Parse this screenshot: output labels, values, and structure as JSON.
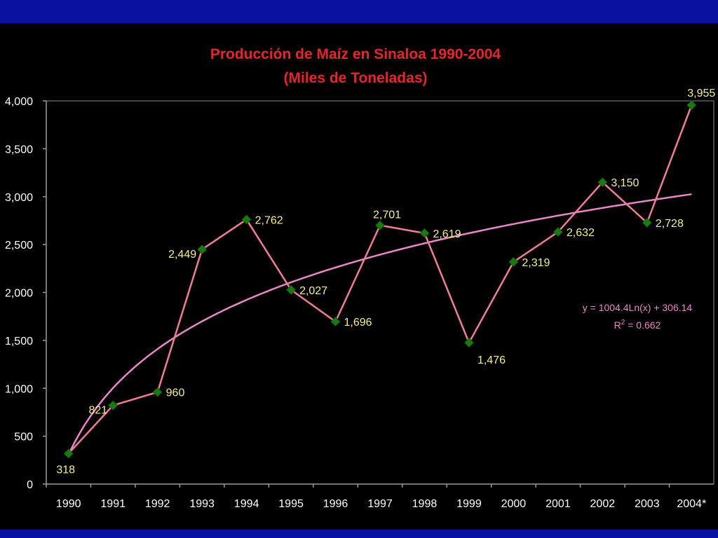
{
  "chart_data": {
    "type": "line",
    "title": "Producción de Maíz en Sinaloa 1990-2004",
    "subtitle": "(Miles de Toneladas)",
    "xlabel": "",
    "ylabel": "",
    "categories": [
      "1990",
      "1991",
      "1992",
      "1993",
      "1994",
      "1995",
      "1996",
      "1997",
      "1998",
      "1999",
      "2000",
      "2001",
      "2002",
      "2003",
      "2004*"
    ],
    "series": [
      {
        "name": "",
        "values": [
          318,
          821,
          960,
          2449,
          2762,
          2027,
          1696,
          2701,
          2619,
          1476,
          2319,
          2632,
          3150,
          2728,
          3955
        ],
        "labels": [
          "318",
          "821",
          "960",
          "2,449",
          "2,762",
          "2,027",
          "1,696",
          "2,701",
          "2,619",
          "1,476",
          "2,319",
          "2,632",
          "3,150",
          "2,728",
          "3,955"
        ],
        "line_color": "#f07c98",
        "marker_color": "#1a7a12",
        "marker": "diamond"
      }
    ],
    "trendline": {
      "type": "logarithmic",
      "a": 1004.4,
      "b": 306.14,
      "equation": "y = 1004.4Ln(x) + 306.14",
      "r2_prefix": "R",
      "r2_exponent": "2",
      "r2_value": " = 0.662",
      "color": "#e887c8"
    },
    "ylim": [
      0,
      4000
    ],
    "yticks": [
      0,
      500,
      1000,
      1500,
      2000,
      2500,
      3000,
      3500,
      4000
    ],
    "ytick_labels": [
      "0",
      "500",
      "1,000",
      "1,500",
      "2,000",
      "2,500",
      "3,000",
      "3,500",
      "4,000"
    ],
    "grid": false,
    "legend": "none"
  }
}
